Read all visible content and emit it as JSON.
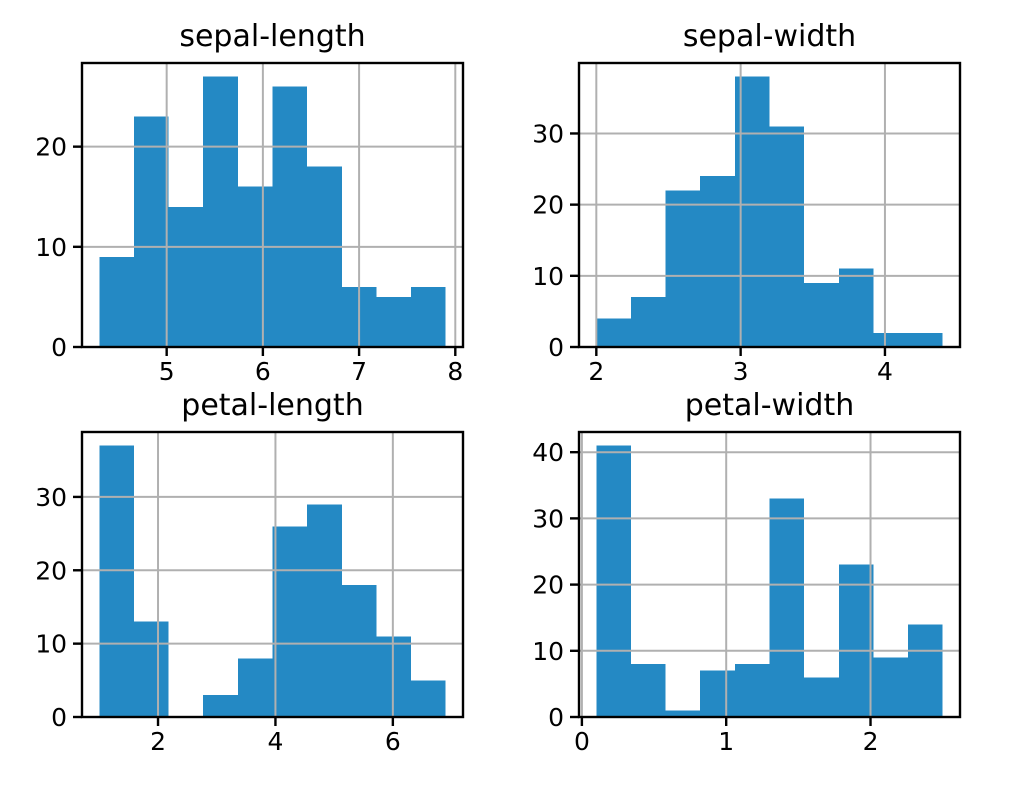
{
  "style": {
    "bar_color": "#2489c4",
    "grid_color": "#b0b0b0",
    "spine_color": "#000000",
    "text_color": "#000000",
    "background_color": "#ffffff"
  },
  "chart_data": [
    {
      "type": "bar",
      "subtype": "histogram",
      "title": "sepal-length",
      "xlabel": "",
      "ylabel": "",
      "bin_start": 4.3,
      "bin_width": 0.36,
      "values": [
        9,
        23,
        14,
        27,
        16,
        26,
        18,
        6,
        5,
        6
      ],
      "xlim": [
        4.12,
        8.08
      ],
      "ylim": [
        0,
        28.35
      ],
      "xticks": [
        5,
        6,
        7,
        8
      ],
      "xtick_labels": [
        "5",
        "6",
        "7",
        "8"
      ],
      "yticks": [
        0,
        10,
        20
      ],
      "ytick_labels": [
        "0",
        "10",
        "20"
      ],
      "grid": true,
      "legend": null
    },
    {
      "type": "bar",
      "subtype": "histogram",
      "title": "sepal-width",
      "xlabel": "",
      "ylabel": "",
      "bin_start": 2.0,
      "bin_width": 0.24,
      "values": [
        4,
        7,
        22,
        24,
        38,
        31,
        9,
        11,
        2,
        2
      ],
      "xlim": [
        1.88,
        4.52
      ],
      "ylim": [
        0,
        39.9
      ],
      "xticks": [
        2,
        3,
        4
      ],
      "xtick_labels": [
        "2",
        "3",
        "4"
      ],
      "yticks": [
        0,
        10,
        20,
        30
      ],
      "ytick_labels": [
        "0",
        "10",
        "20",
        "30"
      ],
      "grid": true,
      "legend": null
    },
    {
      "type": "bar",
      "subtype": "histogram",
      "title": "petal-length",
      "xlabel": "",
      "ylabel": "",
      "bin_start": 1.0,
      "bin_width": 0.59,
      "values": [
        37,
        13,
        0,
        3,
        8,
        26,
        29,
        18,
        11,
        5
      ],
      "xlim": [
        0.705,
        7.195
      ],
      "ylim": [
        0,
        38.85
      ],
      "xticks": [
        2,
        4,
        6
      ],
      "xtick_labels": [
        "2",
        "4",
        "6"
      ],
      "yticks": [
        0,
        10,
        20,
        30
      ],
      "ytick_labels": [
        "0",
        "10",
        "20",
        "30"
      ],
      "grid": true,
      "legend": null
    },
    {
      "type": "bar",
      "subtype": "histogram",
      "title": "petal-width",
      "xlabel": "",
      "ylabel": "",
      "bin_start": 0.1,
      "bin_width": 0.24,
      "values": [
        41,
        8,
        1,
        7,
        8,
        33,
        6,
        23,
        9,
        14
      ],
      "xlim": [
        -0.02,
        2.62
      ],
      "ylim": [
        0,
        43.05
      ],
      "xticks": [
        0,
        1,
        2
      ],
      "xtick_labels": [
        "0",
        "1",
        "2"
      ],
      "yticks": [
        0,
        10,
        20,
        30,
        40
      ],
      "ytick_labels": [
        "0",
        "10",
        "20",
        "30",
        "40"
      ],
      "grid": true,
      "legend": null
    }
  ]
}
